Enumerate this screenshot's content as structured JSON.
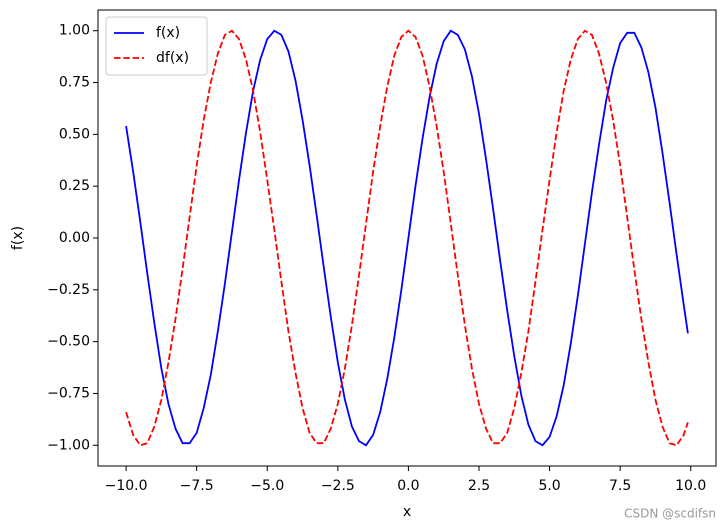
{
  "chart_data": {
    "type": "line",
    "xlabel": "x",
    "ylabel": "f(x)",
    "watermark": "CSDN @scdifsn",
    "x": [
      -10,
      -9.75,
      -9.5,
      -9.25,
      -9,
      -8.75,
      -8.5,
      -8.25,
      -8,
      -7.75,
      -7.5,
      -7.25,
      -7,
      -6.75,
      -6.5,
      -6.25,
      -6,
      -5.75,
      -5.5,
      -5.25,
      -5,
      -4.75,
      -4.5,
      -4.25,
      -4,
      -3.75,
      -3.5,
      -3.25,
      -3,
      -2.75,
      -2.5,
      -2.25,
      -2,
      -1.75,
      -1.5,
      -1.25,
      -1,
      -0.75,
      -0.5,
      -0.25,
      0,
      0.25,
      0.5,
      0.75,
      1,
      1.25,
      1.5,
      1.75,
      2,
      2.25,
      2.5,
      2.75,
      3,
      3.25,
      3.5,
      3.75,
      4,
      4.25,
      4.5,
      4.75,
      5,
      5.25,
      5.5,
      5.75,
      6,
      6.25,
      6.5,
      6.75,
      7,
      7.25,
      7.5,
      7.75,
      8,
      8.25,
      8.5,
      8.75,
      9,
      9.25,
      9.5,
      9.75,
      9.9
    ],
    "series": [
      {
        "name": "f(x)",
        "color": "#0000ff",
        "dash": "solid",
        "values": [
          0.54,
          0.32,
          0.08,
          -0.17,
          -0.41,
          -0.63,
          -0.8,
          -0.92,
          -0.99,
          -0.99,
          -0.94,
          -0.82,
          -0.66,
          -0.45,
          -0.22,
          0.03,
          0.28,
          0.51,
          0.71,
          0.86,
          0.96,
          1.0,
          0.98,
          0.9,
          0.76,
          0.57,
          0.35,
          0.11,
          -0.14,
          -0.38,
          -0.6,
          -0.78,
          -0.91,
          -0.98,
          -1.0,
          -0.95,
          -0.84,
          -0.68,
          -0.48,
          -0.25,
          0,
          0.25,
          0.48,
          0.68,
          0.84,
          0.95,
          1.0,
          0.98,
          0.91,
          0.78,
          0.6,
          0.38,
          0.14,
          -0.11,
          -0.35,
          -0.57,
          -0.76,
          -0.9,
          -0.98,
          -1.0,
          -0.96,
          -0.86,
          -0.71,
          -0.51,
          -0.28,
          -0.03,
          0.22,
          0.45,
          0.66,
          0.82,
          0.94,
          0.99,
          0.99,
          0.92,
          0.8,
          0.63,
          0.41,
          0.17,
          -0.08,
          -0.32,
          -0.46
        ]
      },
      {
        "name": "df(x)",
        "color": "#ff0000",
        "dash": "dashed",
        "values": [
          -0.84,
          -0.95,
          -1.0,
          -0.99,
          -0.91,
          -0.78,
          -0.6,
          -0.39,
          -0.15,
          0.1,
          0.35,
          0.57,
          0.75,
          0.89,
          0.98,
          1.0,
          0.96,
          0.86,
          0.71,
          0.51,
          0.28,
          0.04,
          -0.21,
          -0.45,
          -0.65,
          -0.82,
          -0.94,
          -0.99,
          -0.99,
          -0.92,
          -0.8,
          -0.63,
          -0.42,
          -0.18,
          0.07,
          0.32,
          0.54,
          0.73,
          0.88,
          0.97,
          1.0,
          0.97,
          0.88,
          0.73,
          0.54,
          0.32,
          0.07,
          -0.18,
          -0.42,
          -0.63,
          -0.8,
          -0.92,
          -0.99,
          -0.99,
          -0.94,
          -0.82,
          -0.65,
          -0.45,
          -0.21,
          0.04,
          0.28,
          0.51,
          0.71,
          0.86,
          0.96,
          1.0,
          0.98,
          0.89,
          0.75,
          0.57,
          0.35,
          0.1,
          -0.15,
          -0.39,
          -0.6,
          -0.78,
          -0.91,
          -0.99,
          -1.0,
          -0.95,
          -0.89
        ]
      }
    ],
    "xlim": [
      -10.995,
      10.895
    ],
    "ylim": [
      -1.1,
      1.1
    ],
    "xticks": [
      {
        "value": -10,
        "label": "−10.0"
      },
      {
        "value": -7.5,
        "label": "−7.5"
      },
      {
        "value": -5,
        "label": "−5.0"
      },
      {
        "value": -2.5,
        "label": "−2.5"
      },
      {
        "value": 0,
        "label": "0.0"
      },
      {
        "value": 2.5,
        "label": "2.5"
      },
      {
        "value": 5,
        "label": "5.0"
      },
      {
        "value": 7.5,
        "label": "7.5"
      },
      {
        "value": 10,
        "label": "10.0"
      }
    ],
    "yticks": [
      {
        "value": -1,
        "label": "−1.00"
      },
      {
        "value": -0.75,
        "label": "−0.75"
      },
      {
        "value": -0.5,
        "label": "−0.50"
      },
      {
        "value": -0.25,
        "label": "−0.25"
      },
      {
        "value": 0,
        "label": "0.00"
      },
      {
        "value": 0.25,
        "label": "0.25"
      },
      {
        "value": 0.5,
        "label": "0.50"
      },
      {
        "value": 0.75,
        "label": "0.75"
      },
      {
        "value": 1,
        "label": "1.00"
      }
    ],
    "legend": "upper left"
  }
}
